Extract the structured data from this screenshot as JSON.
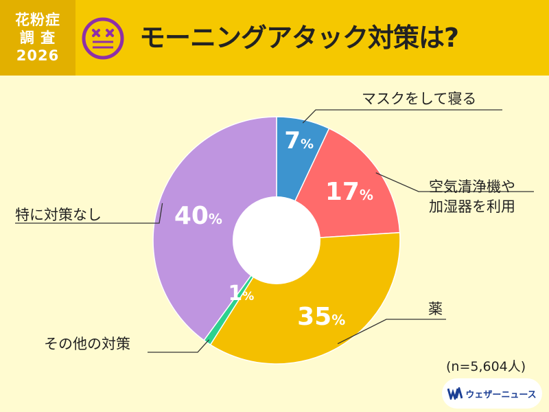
{
  "header": {
    "badge_line1": "花粉症",
    "badge_line2": "調 査",
    "badge_line3": "2026",
    "title": "モーニングアタック対策は?"
  },
  "colors": {
    "header_bg": "#f5c800",
    "badge_bg": "#e2b000",
    "page_bg": "#fffbd0",
    "face": "#8e2fa8"
  },
  "icons": {
    "face": "dizzy-face-icon",
    "logo": "weathernews-logo-icon"
  },
  "chart_data": {
    "type": "pie",
    "donut": true,
    "unit": "%",
    "slices": [
      {
        "label": "マスクをして寝る",
        "value": 7,
        "color": "#3d94cf"
      },
      {
        "label": "空気清浄機や加湿器を利用",
        "value": 17,
        "color": "#ff6b6b"
      },
      {
        "label": "薬",
        "value": 35,
        "color": "#f4bf00"
      },
      {
        "label": "その他の対策",
        "value": 1,
        "color": "#2dd18e"
      },
      {
        "label": "特に対策なし",
        "value": 40,
        "color": "#bf95e0"
      }
    ]
  },
  "labels": {
    "mask_label": "マスクをして寝る",
    "air_label_line1": "空気清浄機や",
    "air_label_line2": "加湿器を利用",
    "medicine_label": "薬",
    "other_label": "その他の対策",
    "none_label": "特に対策なし"
  },
  "footer": {
    "sample": "(n=5,604人)",
    "logo_text": "ウェザーニュース"
  }
}
